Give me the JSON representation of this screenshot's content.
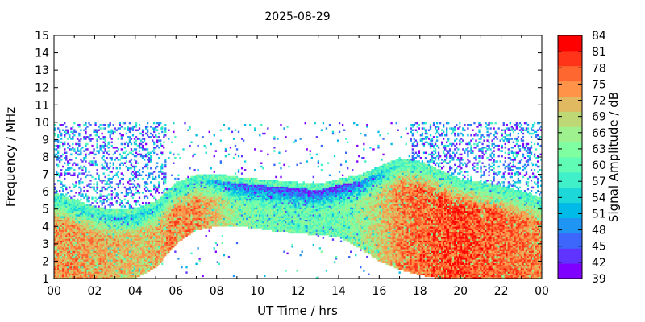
{
  "chart_data": {
    "type": "heatmap",
    "title": "2025-08-29",
    "xlabel": "UT Time / hrs",
    "ylabel": "Frequency / MHz",
    "colorbar_label": "Signal Amplitude / dB",
    "xlim": [
      0,
      24
    ],
    "ylim": [
      1,
      15
    ],
    "x_ticks": [
      "00",
      "02",
      "04",
      "06",
      "08",
      "10",
      "12",
      "14",
      "16",
      "18",
      "20",
      "22",
      "00"
    ],
    "y_ticks": [
      1,
      2,
      3,
      4,
      5,
      6,
      7,
      8,
      9,
      10,
      11,
      12,
      13,
      14,
      15
    ],
    "colorbar_range": [
      39,
      84
    ],
    "colorbar_ticks": [
      39,
      42,
      45,
      48,
      51,
      54,
      57,
      60,
      63,
      66,
      69,
      72,
      75,
      78,
      81,
      84
    ],
    "colormap": [
      "#7f00ff",
      "#5e34fe",
      "#3d67fa",
      "#1e95f2",
      "#00bae7",
      "#1dd8d9",
      "#3ff0c8",
      "#60fcb6",
      "#80fea2",
      "#9ff08e",
      "#bfd876",
      "#e0b960",
      "#ff9449",
      "#ff6730",
      "#ff3418",
      "#ff0000"
    ],
    "grid": false,
    "legend": "colorbar-right",
    "series": [
      {
        "x": [
          0,
          1,
          2,
          3,
          4,
          5,
          6,
          7,
          8,
          9,
          10,
          11,
          12,
          13,
          14,
          15,
          16,
          17,
          18,
          19,
          20,
          21,
          22,
          23,
          24
        ],
        "foF2_MHz": [
          5.6,
          5.2,
          4.8,
          4.6,
          4.7,
          5.1,
          6.2,
          6.6,
          6.7,
          6.5,
          6.4,
          6.3,
          6.2,
          6.1,
          6.4,
          6.6,
          7.1,
          7.6,
          7.4,
          6.9,
          6.4,
          6.2,
          6.0,
          5.7,
          5.3
        ],
        "lower_edge_MHz": [
          1.0,
          1.0,
          1.0,
          1.0,
          1.0,
          1.6,
          3.0,
          3.8,
          4.0,
          4.0,
          3.9,
          3.7,
          3.6,
          3.5,
          3.4,
          2.8,
          2.0,
          1.5,
          1.2,
          1.0,
          1.0,
          1.0,
          1.0,
          1.0,
          1.0
        ],
        "peak_amplitude_dB": [
          79,
          79,
          78,
          77,
          75,
          77,
          80,
          80,
          75,
          68,
          67,
          66,
          66,
          66,
          66,
          69,
          74,
          80,
          82,
          83,
          84,
          83,
          82,
          81,
          80
        ]
      }
    ]
  }
}
